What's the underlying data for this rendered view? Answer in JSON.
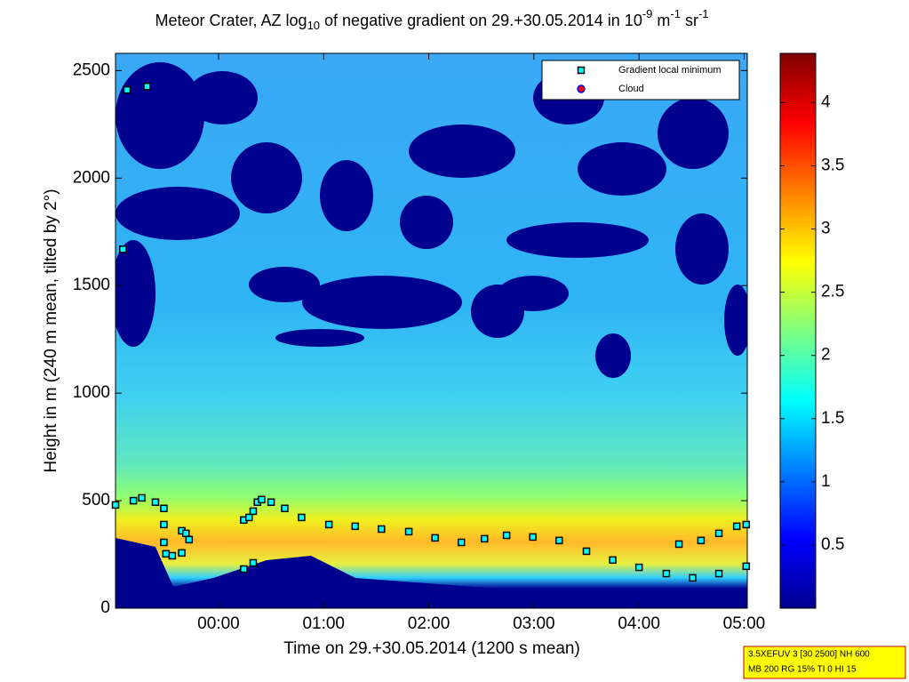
{
  "chart_data": {
    "type": "scatter",
    "title": [
      {
        "text": "Meteor Crater, AZ log",
        "shift": "base"
      },
      {
        "text": "10",
        "shift": "sub"
      },
      {
        "text": " of negative gradient on 29.+30.05.2014 in 10",
        "shift": "base"
      },
      {
        "text": "-9",
        "shift": "super"
      },
      {
        "text": " m",
        "shift": "base"
      },
      {
        "text": "-1",
        "shift": "super"
      },
      {
        "text": " sr",
        "shift": "base"
      },
      {
        "text": "-1",
        "shift": "super"
      }
    ],
    "x_label": "Time on 29.+30.05.2014 (1200 s mean)",
    "y_label": "Height in m (240 m mean, tilted by 2°)",
    "xlim": [
      -0.98,
      5.03
    ],
    "xticks": [
      {
        "value": 0,
        "label": "00:00"
      },
      {
        "value": 1,
        "label": "01:00"
      },
      {
        "value": 2,
        "label": "02:00"
      },
      {
        "value": 3,
        "label": "03:00"
      },
      {
        "value": 4,
        "label": "04:00"
      },
      {
        "value": 5,
        "label": "05:00"
      }
    ],
    "ylim": [
      0,
      2580
    ],
    "yticks": [
      0,
      500,
      1000,
      1500,
      2000,
      2500
    ],
    "colorbar": {
      "colormap": "jet",
      "clim": [
        0,
        4.39
      ],
      "ticks": [
        0.5,
        1,
        1.5,
        2,
        2.5,
        3,
        3.5,
        4
      ]
    },
    "legend_position": "upper right",
    "series": [
      {
        "name": "Gradient local minimum",
        "color": "#00ffff",
        "marker": "square",
        "x": [
          -0.98,
          -0.81,
          -0.73,
          -0.6,
          -0.52,
          -0.52,
          -0.52,
          -0.5,
          -0.44,
          -0.35,
          -0.35,
          -0.31,
          -0.28,
          0.24,
          0.29,
          0.33,
          0.37,
          0.41,
          0.5,
          0.63,
          0.79,
          1.05,
          1.3,
          1.55,
          1.81,
          2.06,
          2.31,
          2.53,
          2.74,
          2.99,
          3.24,
          3.5,
          3.75,
          4.0,
          4.26,
          4.51,
          4.76,
          5.02,
          4.38,
          4.59,
          4.76,
          4.93,
          5.02,
          0.24,
          0.33,
          -0.87,
          -0.68,
          -0.91
        ],
        "y": [
          480,
          500,
          513,
          493,
          464,
          389,
          306,
          253,
          244,
          257,
          360,
          348,
          319,
          410,
          422,
          451,
          493,
          505,
          493,
          464,
          422,
          389,
          381,
          368,
          356,
          327,
          306,
          323,
          339,
          331,
          315,
          265,
          224,
          190,
          161,
          141,
          161,
          195,
          298,
          315,
          348,
          381,
          389,
          182,
          211,
          2410,
          2426,
          1669
        ]
      },
      {
        "name": "Cloud",
        "color": "#ff0000",
        "marker": "circle",
        "x": [],
        "y": []
      }
    ],
    "info_box": [
      "3.5XEFUV 3 [30 2500] NH 600",
      "MB 200 RG 15% TI 0 HI 15"
    ]
  }
}
